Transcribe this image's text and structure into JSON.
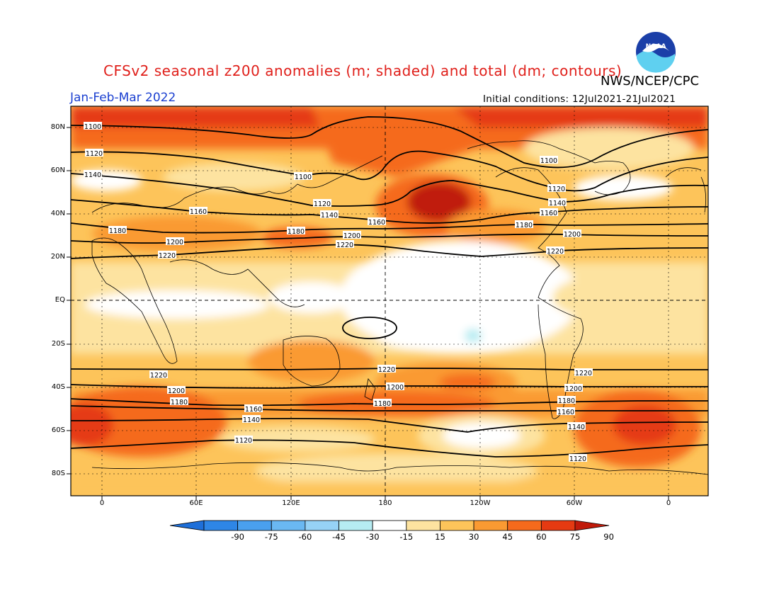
{
  "header": {
    "title": "CFSv2 seasonal z200 anomalies (m; shaded) and total (dm; contours)",
    "agency": "NWS/NCEP/CPC",
    "season": "Jan-Feb-Mar 2022",
    "initial_conditions": "Initial conditions: 12Jul2021-21Jul2021",
    "logo_text": "NOAA"
  },
  "axes": {
    "lat_labels": [
      "80N",
      "60N",
      "40N",
      "20N",
      "EQ",
      "20S",
      "40S",
      "60S",
      "80S"
    ],
    "lon_labels": [
      "0",
      "60E",
      "120E",
      "180",
      "120W",
      "60W",
      "0"
    ]
  },
  "colorbar": {
    "ticks": [
      "-90",
      "-75",
      "-60",
      "-45",
      "-30",
      "-15",
      "15",
      "30",
      "45",
      "60",
      "75",
      "90"
    ],
    "colors": [
      "#1e6fd9",
      "#2e86e6",
      "#4aa0ee",
      "#6ab8f2",
      "#96d2f6",
      "#b6ecf2",
      "#ffffff",
      "#fde3a0",
      "#fdc45a",
      "#fa9a32",
      "#f56a1c",
      "#e53a12",
      "#c01a0a"
    ]
  },
  "contours": {
    "labels": [
      "1100",
      "1120",
      "1140",
      "1160",
      "1180",
      "1200",
      "1220"
    ]
  },
  "map_labels": [
    {
      "text": "1100"
    },
    {
      "text": "1120"
    },
    {
      "text": "1140"
    },
    {
      "text": "1160"
    },
    {
      "text": "1180"
    },
    {
      "text": "1200"
    },
    {
      "text": "1220"
    },
    {
      "text": "1100"
    },
    {
      "text": "1120"
    },
    {
      "text": "1140"
    },
    {
      "text": "1180"
    },
    {
      "text": "1200"
    },
    {
      "text": "1220"
    },
    {
      "text": "1160"
    },
    {
      "text": "1100"
    },
    {
      "text": "1120"
    },
    {
      "text": "1140"
    },
    {
      "text": "1160"
    },
    {
      "text": "1180"
    },
    {
      "text": "1200"
    },
    {
      "text": "1220"
    },
    {
      "text": "1220"
    },
    {
      "text": "1200"
    },
    {
      "text": "1180"
    },
    {
      "text": "1160"
    },
    {
      "text": "1140"
    },
    {
      "text": "1120"
    },
    {
      "text": "1220"
    },
    {
      "text": "1200"
    },
    {
      "text": "1180"
    },
    {
      "text": "1220"
    },
    {
      "text": "1200"
    },
    {
      "text": "1180"
    },
    {
      "text": "1160"
    },
    {
      "text": "1140"
    },
    {
      "text": "1120"
    }
  ]
}
